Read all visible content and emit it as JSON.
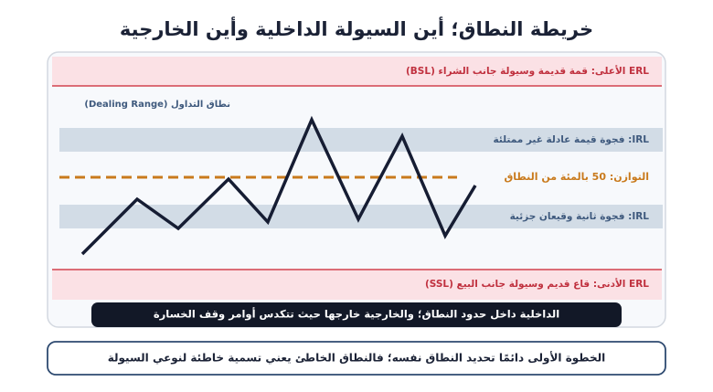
{
  "header": {
    "title": "خريطة النطاق؛ أين السيولة الداخلية وأين الخارجية"
  },
  "diagram": {
    "upper_erl": "ERL الأعلى: قمة قديمة وسيولة جانب الشراء (BSL)",
    "range_label": "نطاق التداول (Dealing Range)",
    "irl_1": "IRL: فجوة قيمة عادلة غير ممتلئة",
    "equilibrium": "التوازن: 50 بالمئة من النطاق",
    "irl_2": "IRL: فجوة ثانية وقيعان جزئية",
    "lower_erl": "ERL الأدنى: قاع قديم وسيولة جانب البيع (SSL)",
    "caption": "الداخلية داخل حدود النطاق؛ والخارجية خارجها حيث تتكدس أوامر وقف الخسارة"
  },
  "footer": {
    "note": "الخطوة الأولى دائمًا تحديد النطاق نفسه؛ فالنطاق الخاطئ يعني تسمية خاطئة لنوعي السيولة"
  }
}
